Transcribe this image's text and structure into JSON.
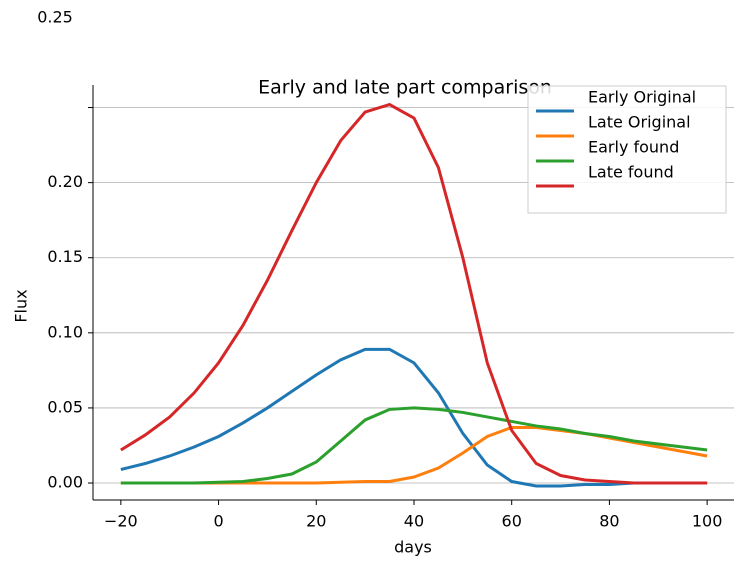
{
  "chart_data": {
    "type": "line",
    "title": "Early and late part comparison",
    "x_label": "days",
    "y_label": "Flux",
    "x": [
      -20,
      -15,
      -10,
      -5,
      0,
      5,
      10,
      15,
      20,
      25,
      30,
      35,
      40,
      45,
      50,
      55,
      60,
      65,
      70,
      75,
      80,
      85,
      90,
      95,
      100
    ],
    "series": [
      {
        "name": "Early Original",
        "color": "#1f77b4",
        "values": [
          0.009,
          0.013,
          0.018,
          0.024,
          0.031,
          0.04,
          0.05,
          0.061,
          0.072,
          0.082,
          0.089,
          0.089,
          0.08,
          0.06,
          0.033,
          0.012,
          0.001,
          -0.002,
          -0.002,
          -0.001,
          -0.001,
          0,
          0,
          0,
          0
        ]
      },
      {
        "name": "Late Original",
        "color": "#ff7f0e",
        "values": [
          0,
          0,
          0,
          0,
          0,
          0,
          0,
          0,
          0,
          0.0005,
          0.001,
          0.001,
          0.004,
          0.01,
          0.02,
          0.031,
          0.037,
          0.037,
          0.035,
          0.033,
          0.03,
          0.027,
          0.024,
          0.021,
          0.018
        ]
      },
      {
        "name": "Early found",
        "color": "#2ca02c",
        "values": [
          0,
          0,
          0,
          0,
          0.0005,
          0.001,
          0.003,
          0.006,
          0.014,
          0.028,
          0.042,
          0.049,
          0.05,
          0.049,
          0.047,
          0.044,
          0.041,
          0.038,
          0.036,
          0.033,
          0.031,
          0.028,
          0.026,
          0.024,
          0.022
        ]
      },
      {
        "name": "Late found",
        "color": "#d62728",
        "values": [
          0.022,
          0.032,
          0.044,
          0.06,
          0.08,
          0.105,
          0.135,
          0.168,
          0.2,
          0.228,
          0.247,
          0.252,
          0.243,
          0.21,
          0.15,
          0.08,
          0.035,
          0.013,
          0.005,
          0.002,
          0.001,
          0,
          0,
          0,
          0
        ]
      }
    ],
    "xlim": [
      -25.7,
      105.5
    ],
    "xticks": [
      {
        "value": -20,
        "label": "−20"
      },
      0,
      20,
      40,
      60,
      80,
      100
    ],
    "ylim": [
      -0.0113,
      0.265
    ],
    "yticks": [
      {
        "value": 0,
        "label": "0.00"
      },
      0.05,
      {
        "value": 0.1,
        "label": "0.10"
      },
      0.15,
      {
        "value": 0.2,
        "label": "0.20"
      },
      0.25
    ],
    "grid": true,
    "legend": "upper right"
  }
}
